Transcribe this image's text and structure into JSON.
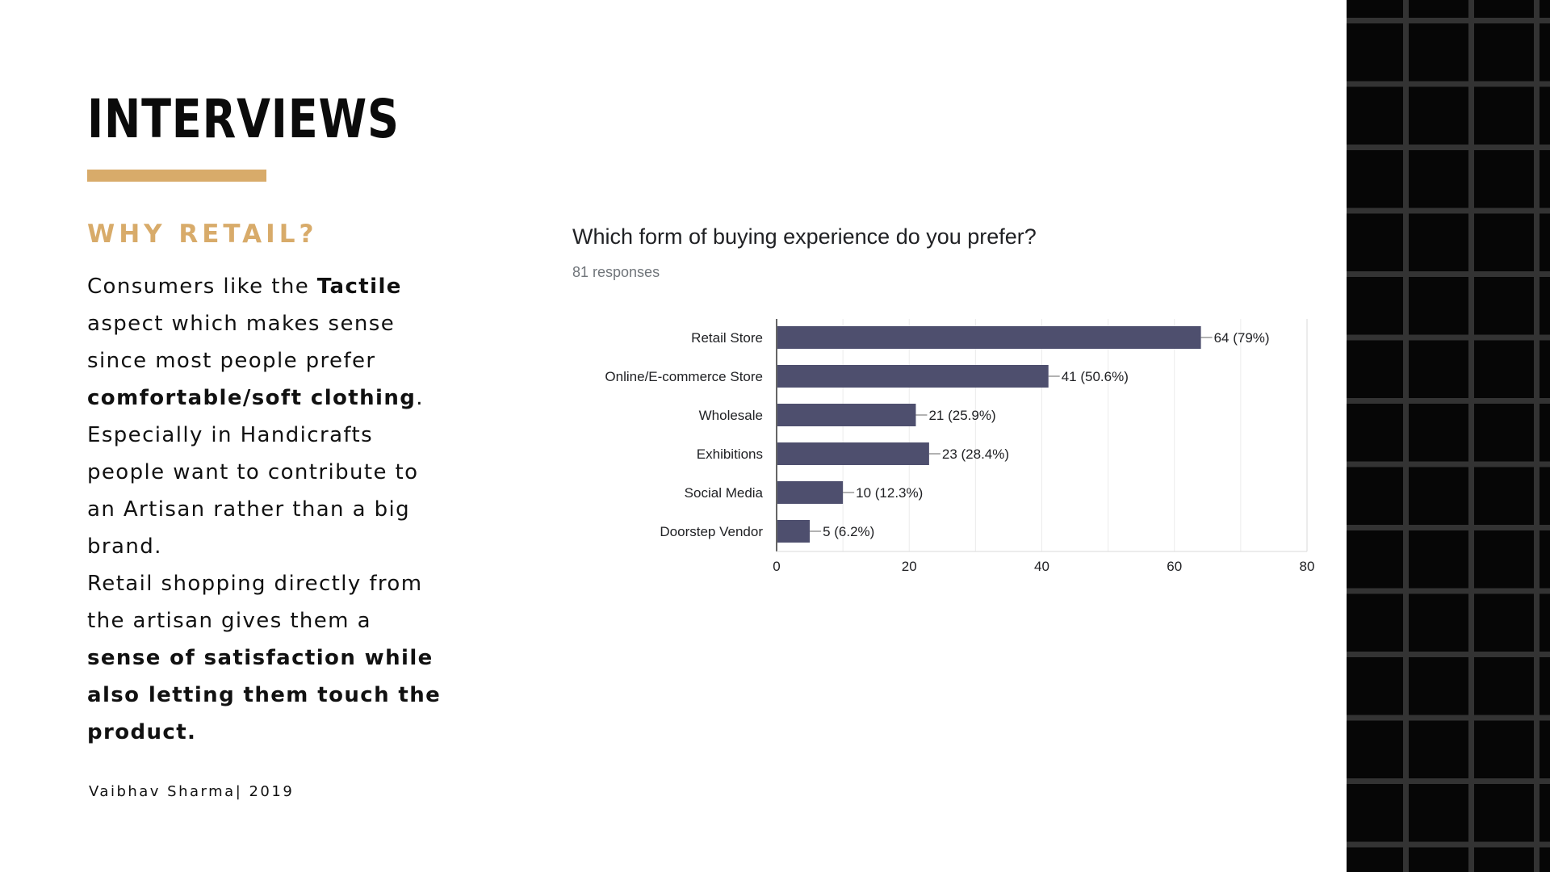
{
  "slide": {
    "title": "INTERVIEWS",
    "subtitle": "WHY RETAIL?",
    "body_lines": [
      [
        {
          "t": "Consumers like the "
        },
        {
          "t": "Tactile",
          "b": true
        }
      ],
      [
        {
          "t": "aspect which makes sense"
        }
      ],
      [
        {
          "t": "since most people prefer"
        }
      ],
      [
        {
          "t": "comfortable/soft clothing",
          "b": true
        },
        {
          "t": "."
        }
      ],
      [
        {
          "t": "Especially in Handicrafts"
        }
      ],
      [
        {
          "t": "people want to contribute to"
        }
      ],
      [
        {
          "t": "an Artisan rather than a big"
        }
      ],
      [
        {
          "t": "brand."
        }
      ],
      [
        {
          "t": "Retail shopping directly from"
        }
      ],
      [
        {
          "t": "the artisan gives them a"
        }
      ],
      [
        {
          "t": "sense of satisfaction while",
          "b": true
        }
      ],
      [
        {
          "t": "also letting them touch the",
          "b": true
        }
      ],
      [
        {
          "t": "product.",
          "b": true
        }
      ]
    ],
    "footer": "Vaibhav Sharma| 2019"
  },
  "colors": {
    "accent": "#d8ab6a",
    "bar": "#4e4f6e",
    "dark_panel": "#060606",
    "panel_grid": "#333333"
  },
  "chart_data": {
    "type": "bar",
    "orientation": "horizontal",
    "title": "Which form of buying experience do you prefer?",
    "subtitle": "81 responses",
    "categories": [
      "Retail Store",
      "Online/E-commerce Store",
      "Wholesale",
      "Exhibitions",
      "Social Media",
      "Doorstep Vendor"
    ],
    "values": [
      64,
      41,
      21,
      23,
      10,
      5
    ],
    "data_labels": [
      "64 (79%)",
      "41 (50.6%)",
      "21 (25.9%)",
      "23 (28.4%)",
      "10 (12.3%)",
      "5 (6.2%)"
    ],
    "xlim": [
      0,
      80
    ],
    "xticks": [
      0,
      20,
      40,
      60,
      80
    ],
    "grid": true
  }
}
